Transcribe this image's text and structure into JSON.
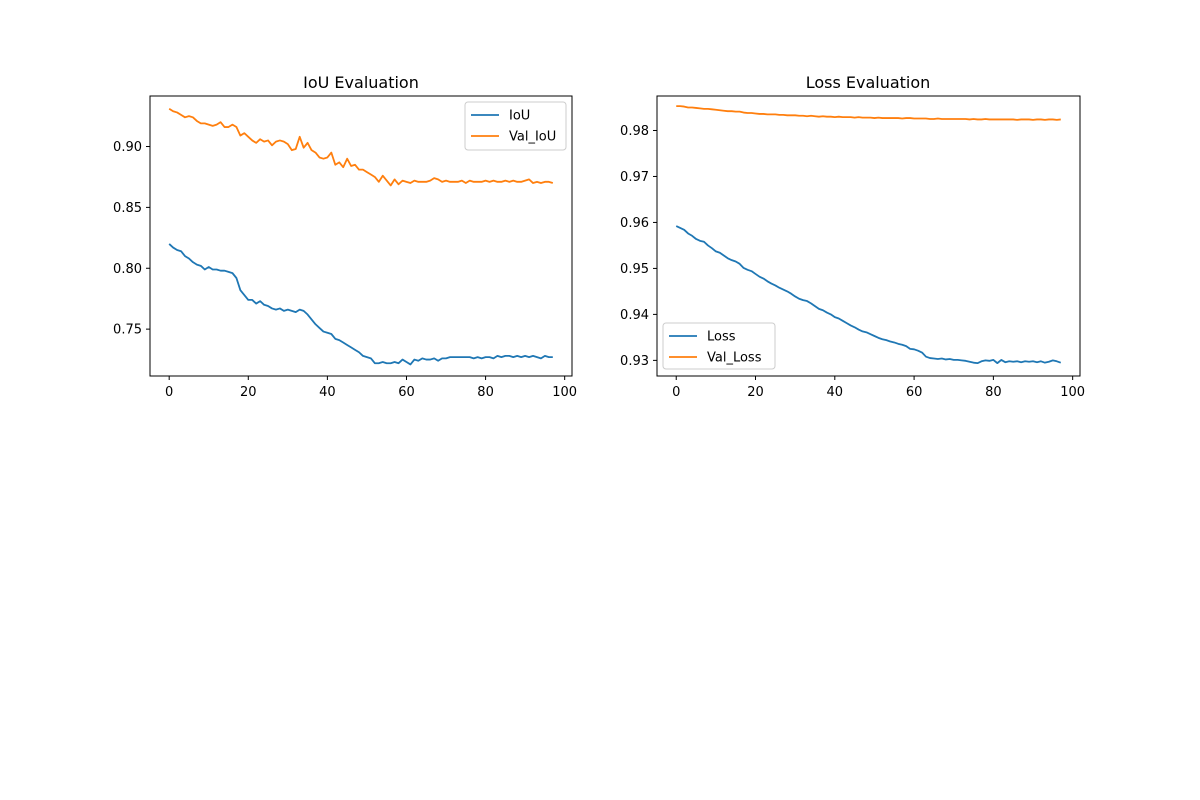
{
  "chart_data": [
    {
      "type": "line",
      "title": "IoU Evaluation",
      "xlabel": "",
      "ylabel": "",
      "xlim": [
        -4.85,
        101.85
      ],
      "ylim": [
        0.7115,
        0.9415
      ],
      "xticks": [
        0,
        20,
        40,
        60,
        80,
        100
      ],
      "yticks": [
        0.75,
        0.8,
        0.85,
        0.9
      ],
      "xtick_labels": [
        "0",
        "20",
        "40",
        "60",
        "80",
        "100"
      ],
      "ytick_labels": [
        "0.75",
        "0.80",
        "0.85",
        "0.90"
      ],
      "grid": false,
      "legend_position": "top-right",
      "x": [
        0,
        1,
        2,
        3,
        4,
        5,
        6,
        7,
        8,
        9,
        10,
        11,
        12,
        13,
        14,
        15,
        16,
        17,
        18,
        19,
        20,
        21,
        22,
        23,
        24,
        25,
        26,
        27,
        28,
        29,
        30,
        31,
        32,
        33,
        34,
        35,
        36,
        37,
        38,
        39,
        40,
        41,
        42,
        43,
        44,
        45,
        46,
        47,
        48,
        49,
        50,
        51,
        52,
        53,
        54,
        55,
        56,
        57,
        58,
        59,
        60,
        61,
        62,
        63,
        64,
        65,
        66,
        67,
        68,
        69,
        70,
        71,
        72,
        73,
        74,
        75,
        76,
        77,
        78,
        79,
        80,
        81,
        82,
        83,
        84,
        85,
        86,
        87,
        88,
        89,
        90,
        91,
        92,
        93,
        94,
        95,
        96,
        97
      ],
      "series": [
        {
          "name": "IoU",
          "color": "#1f77b4",
          "values": [
            0.82,
            0.817,
            0.815,
            0.814,
            0.81,
            0.808,
            0.805,
            0.803,
            0.802,
            0.799,
            0.801,
            0.799,
            0.799,
            0.798,
            0.798,
            0.797,
            0.796,
            0.792,
            0.782,
            0.778,
            0.774,
            0.774,
            0.771,
            0.773,
            0.77,
            0.769,
            0.767,
            0.766,
            0.767,
            0.765,
            0.766,
            0.765,
            0.764,
            0.766,
            0.765,
            0.762,
            0.758,
            0.754,
            0.751,
            0.748,
            0.747,
            0.746,
            0.742,
            0.741,
            0.739,
            0.737,
            0.735,
            0.733,
            0.731,
            0.728,
            0.727,
            0.726,
            0.722,
            0.722,
            0.723,
            0.722,
            0.722,
            0.723,
            0.722,
            0.725,
            0.723,
            0.721,
            0.725,
            0.724,
            0.726,
            0.725,
            0.725,
            0.726,
            0.724,
            0.726,
            0.726,
            0.727,
            0.727,
            0.727,
            0.727,
            0.727,
            0.727,
            0.726,
            0.727,
            0.726,
            0.727,
            0.727,
            0.726,
            0.728,
            0.727,
            0.728,
            0.728,
            0.727,
            0.728,
            0.727,
            0.728,
            0.727,
            0.728,
            0.727,
            0.726,
            0.728,
            0.727,
            0.727
          ]
        },
        {
          "name": "Val_IoU",
          "color": "#ff7f0e",
          "values": [
            0.931,
            0.929,
            0.928,
            0.926,
            0.924,
            0.925,
            0.924,
            0.921,
            0.919,
            0.919,
            0.918,
            0.917,
            0.918,
            0.92,
            0.916,
            0.916,
            0.918,
            0.916,
            0.909,
            0.911,
            0.908,
            0.905,
            0.903,
            0.906,
            0.904,
            0.905,
            0.901,
            0.904,
            0.905,
            0.904,
            0.902,
            0.897,
            0.898,
            0.908,
            0.899,
            0.903,
            0.897,
            0.895,
            0.891,
            0.89,
            0.891,
            0.895,
            0.885,
            0.887,
            0.883,
            0.89,
            0.884,
            0.885,
            0.881,
            0.881,
            0.879,
            0.877,
            0.875,
            0.871,
            0.876,
            0.872,
            0.868,
            0.873,
            0.869,
            0.872,
            0.871,
            0.87,
            0.872,
            0.871,
            0.871,
            0.871,
            0.872,
            0.874,
            0.873,
            0.871,
            0.872,
            0.871,
            0.871,
            0.871,
            0.872,
            0.87,
            0.872,
            0.871,
            0.871,
            0.871,
            0.872,
            0.871,
            0.872,
            0.871,
            0.871,
            0.872,
            0.871,
            0.872,
            0.871,
            0.871,
            0.872,
            0.873,
            0.87,
            0.871,
            0.87,
            0.871,
            0.871,
            0.87
          ]
        }
      ]
    },
    {
      "type": "line",
      "title": "Loss Evaluation",
      "xlabel": "",
      "ylabel": "",
      "xlim": [
        -4.85,
        101.85
      ],
      "ylim": [
        0.9266,
        0.9875
      ],
      "xticks": [
        0,
        20,
        40,
        60,
        80,
        100
      ],
      "yticks": [
        0.93,
        0.94,
        0.95,
        0.96,
        0.97,
        0.98
      ],
      "xtick_labels": [
        "0",
        "20",
        "40",
        "60",
        "80",
        "100"
      ],
      "ytick_labels": [
        "0.93",
        "0.94",
        "0.95",
        "0.96",
        "0.97",
        "0.98"
      ],
      "grid": false,
      "legend_position": "bottom-left",
      "x": [
        0,
        1,
        2,
        3,
        4,
        5,
        6,
        7,
        8,
        9,
        10,
        11,
        12,
        13,
        14,
        15,
        16,
        17,
        18,
        19,
        20,
        21,
        22,
        23,
        24,
        25,
        26,
        27,
        28,
        29,
        30,
        31,
        32,
        33,
        34,
        35,
        36,
        37,
        38,
        39,
        40,
        41,
        42,
        43,
        44,
        45,
        46,
        47,
        48,
        49,
        50,
        51,
        52,
        53,
        54,
        55,
        56,
        57,
        58,
        59,
        60,
        61,
        62,
        63,
        64,
        65,
        66,
        67,
        68,
        69,
        70,
        71,
        72,
        73,
        74,
        75,
        76,
        77,
        78,
        79,
        80,
        81,
        82,
        83,
        84,
        85,
        86,
        87,
        88,
        89,
        90,
        91,
        92,
        93,
        94,
        95,
        96,
        97
      ],
      "series": [
        {
          "name": "Loss",
          "color": "#1f77b4",
          "values": [
            0.9592,
            0.9588,
            0.9584,
            0.9576,
            0.9571,
            0.9564,
            0.956,
            0.9558,
            0.955,
            0.9544,
            0.9537,
            0.9534,
            0.9528,
            0.9522,
            0.9518,
            0.9515,
            0.951,
            0.9501,
            0.9497,
            0.9494,
            0.9488,
            0.9482,
            0.9478,
            0.9472,
            0.9467,
            0.9463,
            0.9458,
            0.9454,
            0.945,
            0.9445,
            0.9439,
            0.9434,
            0.9431,
            0.9429,
            0.9424,
            0.9418,
            0.9412,
            0.9409,
            0.9404,
            0.94,
            0.9394,
            0.9391,
            0.9386,
            0.9381,
            0.9376,
            0.9372,
            0.9367,
            0.9363,
            0.9361,
            0.9357,
            0.9353,
            0.9349,
            0.9346,
            0.9344,
            0.9341,
            0.9339,
            0.9336,
            0.9334,
            0.9331,
            0.9325,
            0.9324,
            0.9321,
            0.9317,
            0.9308,
            0.9305,
            0.9304,
            0.9303,
            0.9304,
            0.9302,
            0.9303,
            0.9301,
            0.9301,
            0.93,
            0.9299,
            0.9297,
            0.9295,
            0.9294,
            0.9298,
            0.93,
            0.9299,
            0.9301,
            0.9294,
            0.9301,
            0.9296,
            0.9298,
            0.9297,
            0.9298,
            0.9296,
            0.9298,
            0.9297,
            0.9298,
            0.9296,
            0.9298,
            0.9295,
            0.9297,
            0.93,
            0.9298,
            0.9295
          ]
        },
        {
          "name": "Val_Loss",
          "color": "#ff7f0e",
          "values": [
            0.9853,
            0.9853,
            0.9852,
            0.985,
            0.985,
            0.9849,
            0.9848,
            0.9847,
            0.9847,
            0.9846,
            0.9845,
            0.9844,
            0.9843,
            0.9842,
            0.9842,
            0.9841,
            0.9841,
            0.9839,
            0.9838,
            0.9838,
            0.9837,
            0.9836,
            0.9836,
            0.9835,
            0.9835,
            0.9835,
            0.9834,
            0.9834,
            0.9833,
            0.9833,
            0.9833,
            0.9832,
            0.9832,
            0.9831,
            0.9832,
            0.9831,
            0.983,
            0.9831,
            0.983,
            0.983,
            0.9829,
            0.983,
            0.9829,
            0.9829,
            0.9829,
            0.9828,
            0.9829,
            0.9828,
            0.9828,
            0.9828,
            0.9827,
            0.9828,
            0.9827,
            0.9827,
            0.9827,
            0.9827,
            0.9827,
            0.9826,
            0.9827,
            0.9827,
            0.9826,
            0.9826,
            0.9826,
            0.9826,
            0.9825,
            0.9825,
            0.9826,
            0.9825,
            0.9825,
            0.9825,
            0.9825,
            0.9825,
            0.9825,
            0.9825,
            0.9824,
            0.9825,
            0.9824,
            0.9824,
            0.9825,
            0.9824,
            0.9824,
            0.9824,
            0.9824,
            0.9824,
            0.9824,
            0.9824,
            0.9823,
            0.9824,
            0.9824,
            0.9824,
            0.9823,
            0.9824,
            0.9824,
            0.9823,
            0.9824,
            0.9824,
            0.9823,
            0.9824
          ]
        }
      ]
    }
  ]
}
